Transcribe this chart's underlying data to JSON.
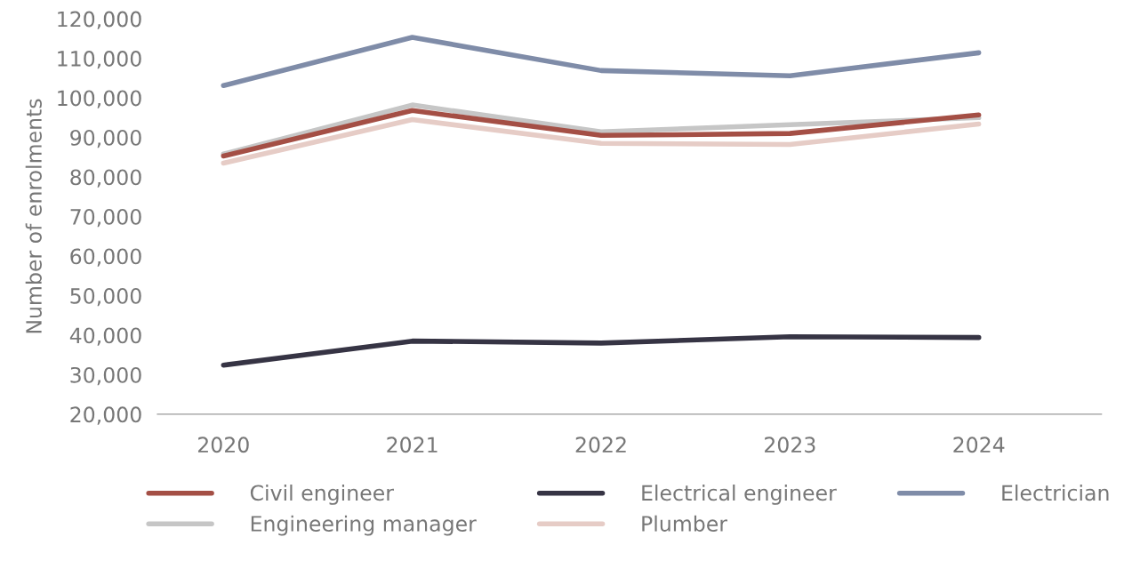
{
  "chart_data": {
    "type": "line",
    "ylabel": "Number of enrolments",
    "categories": [
      "2020",
      "2021",
      "2022",
      "2023",
      "2024"
    ],
    "ylim": [
      20000,
      120000
    ],
    "yticks": [
      {
        "value": 20000,
        "label": "20,000"
      },
      {
        "value": 30000,
        "label": "30,000"
      },
      {
        "value": 40000,
        "label": "40,000"
      },
      {
        "value": 50000,
        "label": "50,000"
      },
      {
        "value": 60000,
        "label": "60,000"
      },
      {
        "value": 70000,
        "label": "70,000"
      },
      {
        "value": 80000,
        "label": "80,000"
      },
      {
        "value": 90000,
        "label": "90,000"
      },
      {
        "value": 100000,
        "label": "100,000"
      },
      {
        "value": 110000,
        "label": "110,000"
      },
      {
        "value": 120000,
        "label": "120,000"
      }
    ],
    "grid": false,
    "legend": "bottom",
    "marker": "none",
    "line_style": "solid",
    "series": [
      {
        "name": "Civil engineer",
        "color": "#a44f45",
        "values": [
          85300,
          96800,
          90500,
          91000,
          95700
        ]
      },
      {
        "name": "Electrical engineer",
        "color": "#363444",
        "values": [
          32400,
          38500,
          38000,
          39600,
          39400
        ]
      },
      {
        "name": "Electrician",
        "color": "#7f8ca8",
        "values": [
          103100,
          115300,
          106900,
          105600,
          111400
        ]
      },
      {
        "name": "Engineering manager",
        "color": "#c6c6c6",
        "values": [
          85800,
          98200,
          91400,
          93200,
          95000
        ]
      },
      {
        "name": "Plumber",
        "color": "#e6ccc6",
        "values": [
          83500,
          94500,
          88500,
          88200,
          93400
        ]
      }
    ]
  }
}
